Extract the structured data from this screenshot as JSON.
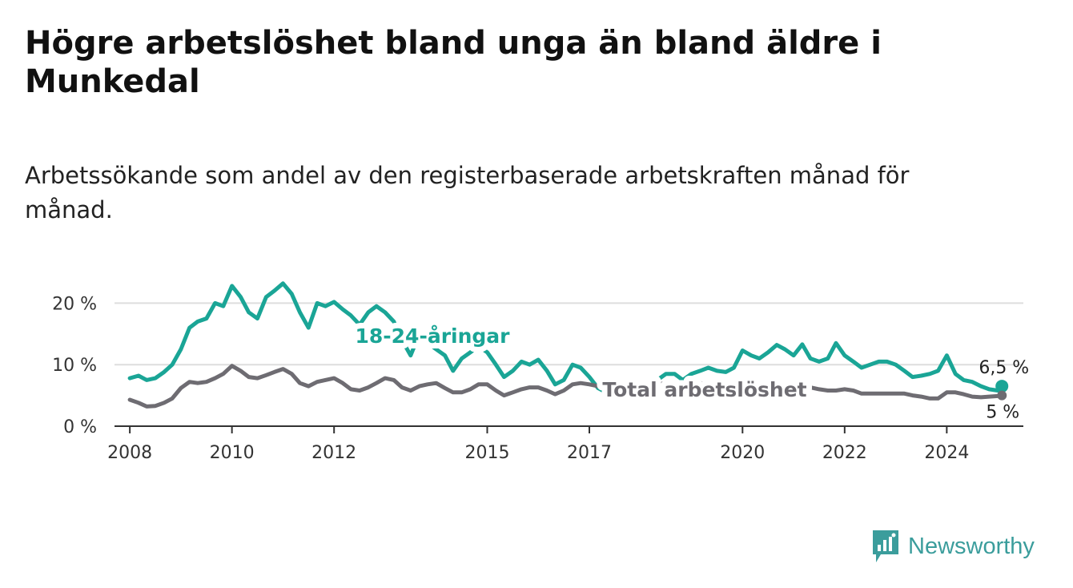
{
  "title": "Högre arbetslöshet bland unga än bland äldre i Munkedal",
  "subtitle": "Arbetssökande som andel av den registerbaserade arbetskraften månad för månad.",
  "brand": {
    "name": "Newsworthy",
    "icon": "newsworthy-logo-icon",
    "color": "#3b9d9c"
  },
  "chart_data": {
    "type": "line",
    "ylim": [
      0,
      25
    ],
    "y_ticks": [
      0,
      10,
      20
    ],
    "y_tick_labels": [
      "0 %",
      "10 %",
      "20 %"
    ],
    "x_range": [
      2007.7,
      2025.5
    ],
    "x_ticks": [
      2008,
      2010,
      2012,
      2015,
      2017,
      2020,
      2022,
      2024
    ],
    "x_tick_labels": [
      "2008",
      "2010",
      "2012",
      "2015",
      "2017",
      "2020",
      "2022",
      "2024"
    ],
    "grid": "horizontal",
    "series": [
      {
        "name": "18-24-åringar",
        "color": "#1aa596",
        "end_label": "6,5 %",
        "x": [
          2008,
          2008.17,
          2008.33,
          2008.5,
          2008.67,
          2008.83,
          2009,
          2009.17,
          2009.33,
          2009.5,
          2009.67,
          2009.83,
          2010,
          2010.17,
          2010.33,
          2010.5,
          2010.67,
          2010.83,
          2011,
          2011.17,
          2011.33,
          2011.5,
          2011.67,
          2011.83,
          2012,
          2012.17,
          2012.33,
          2012.5,
          2012.67,
          2012.83,
          2013,
          2013.17,
          2013.33,
          2013.5,
          2013.67,
          2013.83,
          2014,
          2014.17,
          2014.33,
          2014.5,
          2014.67,
          2014.83,
          2015,
          2015.17,
          2015.33,
          2015.5,
          2015.67,
          2015.83,
          2016,
          2016.17,
          2016.33,
          2016.5,
          2016.67,
          2016.83,
          2017,
          2017.17,
          2017.33,
          2017.5,
          2017.67,
          2017.83,
          2018,
          2018.17,
          2018.33,
          2018.5,
          2018.67,
          2018.83,
          2019,
          2019.17,
          2019.33,
          2019.5,
          2019.67,
          2019.83,
          2020,
          2020.17,
          2020.33,
          2020.5,
          2020.67,
          2020.83,
          2021,
          2021.17,
          2021.33,
          2021.5,
          2021.67,
          2021.83,
          2022,
          2022.17,
          2022.33,
          2022.5,
          2022.67,
          2022.83,
          2023,
          2023.17,
          2023.33,
          2023.5,
          2023.67,
          2023.83,
          2024,
          2024.17,
          2024.33,
          2024.5,
          2024.67,
          2024.83,
          2025,
          2025.08
        ],
        "y": [
          7.8,
          8.2,
          7.5,
          7.8,
          8.8,
          10,
          12.5,
          16,
          17,
          17.5,
          20,
          19.5,
          22.8,
          21,
          18.5,
          17.5,
          21,
          22,
          23.2,
          21.5,
          18.5,
          16,
          20,
          19.5,
          20.2,
          19,
          18,
          16.5,
          18.5,
          19.5,
          18.5,
          17,
          14,
          11.5,
          15,
          13.5,
          12.5,
          11.5,
          9,
          11,
          12,
          13,
          12,
          10,
          8,
          9,
          10.5,
          10,
          10.8,
          9,
          6.8,
          7.5,
          10,
          9.5,
          8,
          6.2,
          5.5,
          5.2,
          4.5,
          5.5,
          6.5,
          7.2,
          7.5,
          8.5,
          8.5,
          7.5,
          8.5,
          9,
          9.5,
          9,
          8.8,
          9.5,
          12.3,
          11.5,
          11,
          12,
          13.2,
          12.5,
          11.5,
          13.3,
          11,
          10.5,
          11,
          13.5,
          11.5,
          10.5,
          9.5,
          10,
          10.5,
          10.5,
          10,
          9,
          8,
          8.2,
          8.5,
          9,
          11.5,
          8.5,
          7.5,
          7.2,
          6.5,
          6,
          5.8,
          6.5
        ]
      },
      {
        "name": "Total arbetslöshet",
        "color": "#6e6c72",
        "end_label": "5 %",
        "x": [
          2008,
          2008.17,
          2008.33,
          2008.5,
          2008.67,
          2008.83,
          2009,
          2009.17,
          2009.33,
          2009.5,
          2009.67,
          2009.83,
          2010,
          2010.17,
          2010.33,
          2010.5,
          2010.67,
          2010.83,
          2011,
          2011.17,
          2011.33,
          2011.5,
          2011.67,
          2011.83,
          2012,
          2012.17,
          2012.33,
          2012.5,
          2012.67,
          2012.83,
          2013,
          2013.17,
          2013.33,
          2013.5,
          2013.67,
          2013.83,
          2014,
          2014.17,
          2014.33,
          2014.5,
          2014.67,
          2014.83,
          2015,
          2015.17,
          2015.33,
          2015.5,
          2015.67,
          2015.83,
          2016,
          2016.17,
          2016.33,
          2016.5,
          2016.67,
          2016.83,
          2017,
          2017.17,
          2017.33,
          2017.5,
          2017.67,
          2017.83,
          2018,
          2018.17,
          2018.33,
          2018.5,
          2018.67,
          2018.83,
          2019,
          2019.17,
          2019.33,
          2019.5,
          2019.67,
          2019.83,
          2020,
          2020.17,
          2020.33,
          2020.5,
          2020.67,
          2020.83,
          2021,
          2021.17,
          2021.33,
          2021.5,
          2021.67,
          2021.83,
          2022,
          2022.17,
          2022.33,
          2022.5,
          2022.67,
          2022.83,
          2023,
          2023.17,
          2023.33,
          2023.5,
          2023.67,
          2023.83,
          2024,
          2024.17,
          2024.33,
          2024.5,
          2024.67,
          2024.83,
          2025,
          2025.08
        ],
        "y": [
          4.3,
          3.8,
          3.2,
          3.3,
          3.8,
          4.5,
          6.2,
          7.2,
          7,
          7.2,
          7.8,
          8.5,
          9.8,
          9,
          8,
          7.8,
          8.3,
          8.8,
          9.3,
          8.5,
          7,
          6.5,
          7.2,
          7.5,
          7.8,
          7,
          6,
          5.8,
          6.3,
          7,
          7.8,
          7.5,
          6.3,
          5.8,
          6.5,
          6.8,
          7,
          6.2,
          5.5,
          5.5,
          6,
          6.8,
          6.8,
          5.8,
          5,
          5.5,
          6,
          6.3,
          6.3,
          5.8,
          5.2,
          5.8,
          6.8,
          7,
          6.8,
          6.5,
          6.3,
          6.3,
          6.5,
          6.8,
          6.8,
          6.5,
          6.8,
          7,
          6.8,
          6.5,
          6.8,
          7,
          6.8,
          6.5,
          6.5,
          6.8,
          6.5,
          6.8,
          7,
          7,
          7,
          6.8,
          6.5,
          6.5,
          6.3,
          6,
          5.8,
          5.8,
          6,
          5.8,
          5.3,
          5.3,
          5.3,
          5.3,
          5.3,
          5.3,
          5,
          4.8,
          4.5,
          4.5,
          5.5,
          5.5,
          5.2,
          4.8,
          4.7,
          4.8,
          4.9,
          5
        ]
      }
    ]
  }
}
